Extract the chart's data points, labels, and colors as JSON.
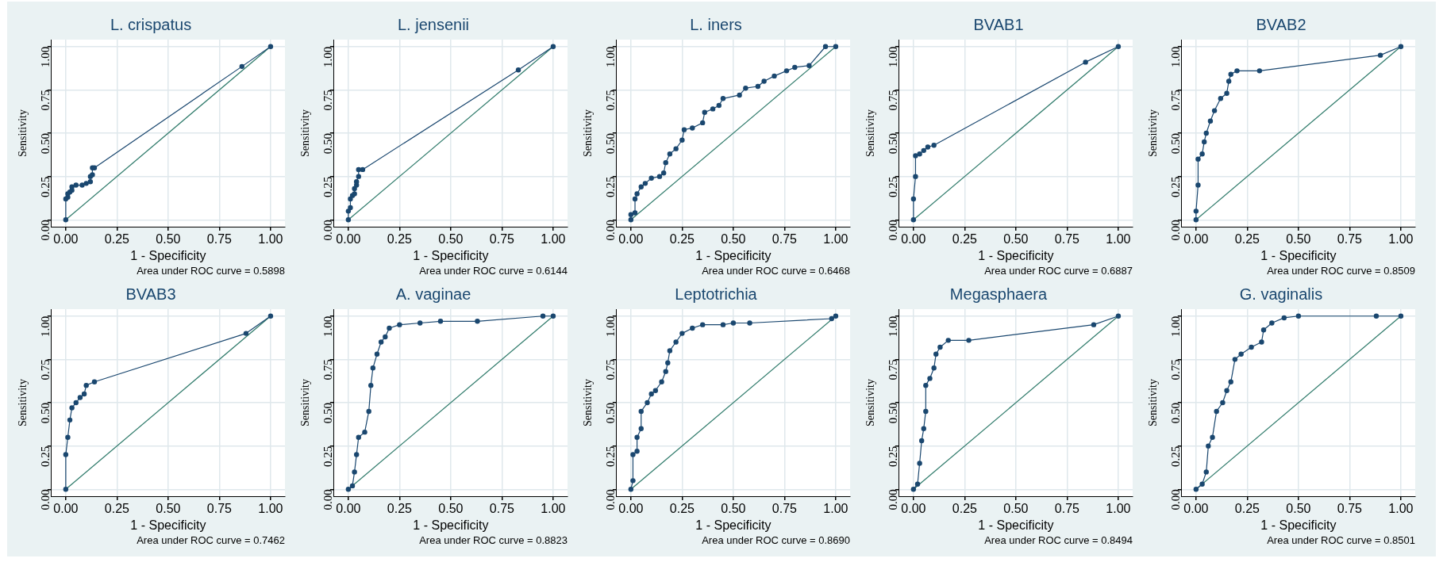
{
  "chart_data": [
    {
      "type": "line",
      "title": "L. crispatus",
      "xlabel": "1 - Specificity",
      "ylabel": "Sensitivity",
      "annotations": [
        "Area under ROC curve = 0.5898"
      ],
      "xlim": [
        -0.07,
        1.07
      ],
      "ylim": [
        -0.04,
        1.04
      ],
      "xticks": [
        {
          "value": 0,
          "label": "0.00"
        },
        {
          "value": 0.25,
          "label": "0.25"
        },
        {
          "value": 0.5,
          "label": "0.50"
        },
        {
          "value": 0.75,
          "label": "0.75"
        },
        {
          "value": 1,
          "label": "1.00"
        }
      ],
      "yticks": [
        {
          "value": 0,
          "label": "0.00"
        },
        {
          "value": 0.25,
          "label": "0.25"
        },
        {
          "value": 0.5,
          "label": "0.50"
        },
        {
          "value": 0.75,
          "label": "0.75"
        },
        {
          "value": 1,
          "label": "1.00"
        }
      ],
      "grid": true,
      "legend": false,
      "marker": "circle",
      "series": [
        {
          "color": "#1a476f",
          "x": [
            0,
            0,
            0.01,
            0.01,
            0.02,
            0.03,
            0.03,
            0.05,
            0.08,
            0.1,
            0.12,
            0.12,
            0.13,
            0.13,
            0.14,
            0.86,
            1
          ],
          "values": [
            0,
            0.12,
            0.13,
            0.15,
            0.16,
            0.17,
            0.19,
            0.2,
            0.2,
            0.21,
            0.22,
            0.25,
            0.26,
            0.3,
            0.3,
            0.885,
            1
          ]
        },
        {
          "color": "#2e7a6a",
          "marker": "none",
          "x": [
            0,
            1
          ],
          "values": [
            0,
            1
          ]
        }
      ]
    },
    {
      "type": "line",
      "title": "L. jensenii",
      "xlabel": "1 - Specificity",
      "ylabel": "Sensitivity",
      "annotations": [
        "Area under ROC curve = 0.6144"
      ],
      "xlim": [
        -0.07,
        1.07
      ],
      "ylim": [
        -0.04,
        1.04
      ],
      "xticks": [
        {
          "value": 0,
          "label": "0.00"
        },
        {
          "value": 0.25,
          "label": "0.25"
        },
        {
          "value": 0.5,
          "label": "0.50"
        },
        {
          "value": 0.75,
          "label": "0.75"
        },
        {
          "value": 1,
          "label": "1.00"
        }
      ],
      "yticks": [
        {
          "value": 0,
          "label": "0.00"
        },
        {
          "value": 0.25,
          "label": "0.25"
        },
        {
          "value": 0.5,
          "label": "0.50"
        },
        {
          "value": 0.75,
          "label": "0.75"
        },
        {
          "value": 1,
          "label": "1.00"
        }
      ],
      "grid": true,
      "legend": false,
      "marker": "circle",
      "series": [
        {
          "color": "#1a476f",
          "x": [
            0,
            0,
            0.01,
            0.01,
            0.02,
            0.03,
            0.03,
            0.04,
            0.04,
            0.05,
            0.05,
            0.07,
            0.83,
            1
          ],
          "values": [
            0,
            0.05,
            0.07,
            0.12,
            0.14,
            0.15,
            0.18,
            0.2,
            0.22,
            0.25,
            0.29,
            0.29,
            0.865,
            1
          ]
        },
        {
          "color": "#2e7a6a",
          "marker": "none",
          "x": [
            0,
            1
          ],
          "values": [
            0,
            1
          ]
        }
      ]
    },
    {
      "type": "line",
      "title": "L. iners",
      "xlabel": "1 - Specificity",
      "ylabel": "Sensitivity",
      "annotations": [
        "Area under ROC curve = 0.6468"
      ],
      "xlim": [
        -0.07,
        1.07
      ],
      "ylim": [
        -0.04,
        1.04
      ],
      "xticks": [
        {
          "value": 0,
          "label": "0.00"
        },
        {
          "value": 0.25,
          "label": "0.25"
        },
        {
          "value": 0.5,
          "label": "0.50"
        },
        {
          "value": 0.75,
          "label": "0.75"
        },
        {
          "value": 1,
          "label": "1.00"
        }
      ],
      "yticks": [
        {
          "value": 0,
          "label": "0.00"
        },
        {
          "value": 0.25,
          "label": "0.25"
        },
        {
          "value": 0.5,
          "label": "0.50"
        },
        {
          "value": 0.75,
          "label": "0.75"
        },
        {
          "value": 1,
          "label": "1.00"
        }
      ],
      "grid": true,
      "legend": false,
      "marker": "circle",
      "series": [
        {
          "color": "#1a476f",
          "x": [
            0,
            0,
            0.02,
            0.02,
            0.03,
            0.05,
            0.07,
            0.1,
            0.14,
            0.16,
            0.17,
            0.19,
            0.22,
            0.25,
            0.26,
            0.3,
            0.35,
            0.36,
            0.4,
            0.43,
            0.45,
            0.53,
            0.56,
            0.62,
            0.65,
            0.7,
            0.76,
            0.8,
            0.87,
            0.95,
            1
          ],
          "values": [
            0,
            0.03,
            0.04,
            0.12,
            0.15,
            0.19,
            0.21,
            0.24,
            0.25,
            0.27,
            0.33,
            0.38,
            0.41,
            0.46,
            0.52,
            0.53,
            0.56,
            0.62,
            0.64,
            0.66,
            0.7,
            0.72,
            0.76,
            0.77,
            0.8,
            0.83,
            0.86,
            0.88,
            0.89,
            1,
            1
          ]
        },
        {
          "color": "#2e7a6a",
          "marker": "none",
          "x": [
            0,
            1
          ],
          "values": [
            0,
            1
          ]
        }
      ]
    },
    {
      "type": "line",
      "title": "BVAB1",
      "xlabel": "1 - Specificity",
      "ylabel": "Sensitivity",
      "annotations": [
        "Area under ROC curve = 0.6887"
      ],
      "xlim": [
        -0.07,
        1.07
      ],
      "ylim": [
        -0.04,
        1.04
      ],
      "xticks": [
        {
          "value": 0,
          "label": "0.00"
        },
        {
          "value": 0.25,
          "label": "0.25"
        },
        {
          "value": 0.5,
          "label": "0.50"
        },
        {
          "value": 0.75,
          "label": "0.75"
        },
        {
          "value": 1,
          "label": "1.00"
        }
      ],
      "yticks": [
        {
          "value": 0,
          "label": "0.00"
        },
        {
          "value": 0.25,
          "label": "0.25"
        },
        {
          "value": 0.5,
          "label": "0.50"
        },
        {
          "value": 0.75,
          "label": "0.75"
        },
        {
          "value": 1,
          "label": "1.00"
        }
      ],
      "grid": true,
      "legend": false,
      "marker": "circle",
      "series": [
        {
          "color": "#1a476f",
          "x": [
            0,
            0,
            0.01,
            0.01,
            0.03,
            0.05,
            0.07,
            0.1,
            0.84,
            1
          ],
          "values": [
            0,
            0.12,
            0.25,
            0.37,
            0.38,
            0.4,
            0.42,
            0.43,
            0.91,
            1
          ]
        },
        {
          "color": "#2e7a6a",
          "marker": "none",
          "x": [
            0,
            1
          ],
          "values": [
            0,
            1
          ]
        }
      ]
    },
    {
      "type": "line",
      "title": "BVAB2",
      "xlabel": "1 - Specificity",
      "ylabel": "Sensitivity",
      "annotations": [
        "Area under ROC curve = 0.8509"
      ],
      "xlim": [
        -0.07,
        1.07
      ],
      "ylim": [
        -0.04,
        1.04
      ],
      "xticks": [
        {
          "value": 0,
          "label": "0.00"
        },
        {
          "value": 0.25,
          "label": "0.25"
        },
        {
          "value": 0.5,
          "label": "0.50"
        },
        {
          "value": 0.75,
          "label": "0.75"
        },
        {
          "value": 1,
          "label": "1.00"
        }
      ],
      "yticks": [
        {
          "value": 0,
          "label": "0.00"
        },
        {
          "value": 0.25,
          "label": "0.25"
        },
        {
          "value": 0.5,
          "label": "0.50"
        },
        {
          "value": 0.75,
          "label": "0.75"
        },
        {
          "value": 1,
          "label": "1.00"
        }
      ],
      "grid": true,
      "legend": false,
      "marker": "circle",
      "series": [
        {
          "color": "#1a476f",
          "x": [
            0,
            0,
            0.01,
            0.01,
            0.03,
            0.04,
            0.05,
            0.07,
            0.09,
            0.12,
            0.15,
            0.16,
            0.17,
            0.2,
            0.31,
            0.9,
            1
          ],
          "values": [
            0,
            0.05,
            0.2,
            0.35,
            0.38,
            0.45,
            0.5,
            0.57,
            0.63,
            0.7,
            0.73,
            0.8,
            0.84,
            0.86,
            0.86,
            0.95,
            1
          ]
        },
        {
          "color": "#2e7a6a",
          "marker": "none",
          "x": [
            0,
            1
          ],
          "values": [
            0,
            1
          ]
        }
      ]
    },
    {
      "type": "line",
      "title": "BVAB3",
      "xlabel": "1 - Specificity",
      "ylabel": "Sensitivity",
      "annotations": [
        "Area under ROC curve = 0.7462"
      ],
      "xlim": [
        -0.07,
        1.07
      ],
      "ylim": [
        -0.04,
        1.04
      ],
      "xticks": [
        {
          "value": 0,
          "label": "0.00"
        },
        {
          "value": 0.25,
          "label": "0.25"
        },
        {
          "value": 0.5,
          "label": "0.50"
        },
        {
          "value": 0.75,
          "label": "0.75"
        },
        {
          "value": 1,
          "label": "1.00"
        }
      ],
      "yticks": [
        {
          "value": 0,
          "label": "0.00"
        },
        {
          "value": 0.25,
          "label": "0.25"
        },
        {
          "value": 0.5,
          "label": "0.50"
        },
        {
          "value": 0.75,
          "label": "0.75"
        },
        {
          "value": 1,
          "label": "1.00"
        }
      ],
      "grid": true,
      "legend": false,
      "marker": "circle",
      "series": [
        {
          "color": "#1a476f",
          "x": [
            0,
            0,
            0.01,
            0.02,
            0.03,
            0.05,
            0.07,
            0.09,
            0.1,
            0.14,
            0.88,
            1
          ],
          "values": [
            0,
            0.2,
            0.3,
            0.4,
            0.47,
            0.5,
            0.53,
            0.55,
            0.6,
            0.62,
            0.9,
            1
          ]
        },
        {
          "color": "#2e7a6a",
          "marker": "none",
          "x": [
            0,
            1
          ],
          "values": [
            0,
            1
          ]
        }
      ]
    },
    {
      "type": "line",
      "title": "A. vaginae",
      "xlabel": "1 - Specificity",
      "ylabel": "Sensitivity",
      "annotations": [
        "Area under ROC curve = 0.8823"
      ],
      "xlim": [
        -0.07,
        1.07
      ],
      "ylim": [
        -0.04,
        1.04
      ],
      "xticks": [
        {
          "value": 0,
          "label": "0.00"
        },
        {
          "value": 0.25,
          "label": "0.25"
        },
        {
          "value": 0.5,
          "label": "0.50"
        },
        {
          "value": 0.75,
          "label": "0.75"
        },
        {
          "value": 1,
          "label": "1.00"
        }
      ],
      "yticks": [
        {
          "value": 0,
          "label": "0.00"
        },
        {
          "value": 0.25,
          "label": "0.25"
        },
        {
          "value": 0.5,
          "label": "0.50"
        },
        {
          "value": 0.75,
          "label": "0.75"
        },
        {
          "value": 1,
          "label": "1.00"
        }
      ],
      "grid": true,
      "legend": false,
      "marker": "circle",
      "series": [
        {
          "color": "#1a476f",
          "x": [
            0,
            0.02,
            0.03,
            0.04,
            0.05,
            0.08,
            0.1,
            0.11,
            0.12,
            0.14,
            0.16,
            0.18,
            0.2,
            0.25,
            0.35,
            0.45,
            0.63,
            0.95,
            1
          ],
          "values": [
            0,
            0.02,
            0.1,
            0.2,
            0.3,
            0.33,
            0.45,
            0.6,
            0.7,
            0.78,
            0.85,
            0.88,
            0.93,
            0.95,
            0.96,
            0.97,
            0.97,
            1,
            1
          ]
        },
        {
          "color": "#2e7a6a",
          "marker": "none",
          "x": [
            0,
            1
          ],
          "values": [
            0,
            1
          ]
        }
      ]
    },
    {
      "type": "line",
      "title": "Leptotrichia",
      "xlabel": "1 - Specificity",
      "ylabel": "Sensitivity",
      "annotations": [
        "Area under ROC curve = 0.8690"
      ],
      "xlim": [
        -0.07,
        1.07
      ],
      "ylim": [
        -0.04,
        1.04
      ],
      "xticks": [
        {
          "value": 0,
          "label": "0.00"
        },
        {
          "value": 0.25,
          "label": "0.25"
        },
        {
          "value": 0.5,
          "label": "0.50"
        },
        {
          "value": 0.75,
          "label": "0.75"
        },
        {
          "value": 1,
          "label": "1.00"
        }
      ],
      "yticks": [
        {
          "value": 0,
          "label": "0.00"
        },
        {
          "value": 0.25,
          "label": "0.25"
        },
        {
          "value": 0.5,
          "label": "0.50"
        },
        {
          "value": 0.75,
          "label": "0.75"
        },
        {
          "value": 1,
          "label": "1.00"
        }
      ],
      "grid": true,
      "legend": false,
      "marker": "circle",
      "series": [
        {
          "color": "#1a476f",
          "x": [
            0,
            0.01,
            0.01,
            0.03,
            0.03,
            0.05,
            0.05,
            0.08,
            0.1,
            0.12,
            0.15,
            0.17,
            0.18,
            0.19,
            0.22,
            0.25,
            0.3,
            0.35,
            0.45,
            0.5,
            0.58,
            0.98,
            1
          ],
          "values": [
            0,
            0.05,
            0.2,
            0.22,
            0.3,
            0.35,
            0.45,
            0.5,
            0.55,
            0.57,
            0.62,
            0.68,
            0.73,
            0.8,
            0.85,
            0.9,
            0.93,
            0.95,
            0.95,
            0.96,
            0.96,
            0.985,
            1
          ]
        },
        {
          "color": "#2e7a6a",
          "marker": "none",
          "x": [
            0,
            1
          ],
          "values": [
            0,
            1
          ]
        }
      ]
    },
    {
      "type": "line",
      "title": "Megasphaera",
      "xlabel": "1 - Specificity",
      "ylabel": "Sensitivity",
      "annotations": [
        "Area under ROC curve = 0.8494"
      ],
      "xlim": [
        -0.07,
        1.07
      ],
      "ylim": [
        -0.04,
        1.04
      ],
      "xticks": [
        {
          "value": 0,
          "label": "0.00"
        },
        {
          "value": 0.25,
          "label": "0.25"
        },
        {
          "value": 0.5,
          "label": "0.50"
        },
        {
          "value": 0.75,
          "label": "0.75"
        },
        {
          "value": 1,
          "label": "1.00"
        }
      ],
      "yticks": [
        {
          "value": 0,
          "label": "0.00"
        },
        {
          "value": 0.25,
          "label": "0.25"
        },
        {
          "value": 0.5,
          "label": "0.50"
        },
        {
          "value": 0.75,
          "label": "0.75"
        },
        {
          "value": 1,
          "label": "1.00"
        }
      ],
      "grid": true,
      "legend": false,
      "marker": "circle",
      "series": [
        {
          "color": "#1a476f",
          "x": [
            0,
            0.02,
            0.03,
            0.04,
            0.05,
            0.06,
            0.06,
            0.08,
            0.1,
            0.11,
            0.13,
            0.17,
            0.27,
            0.88,
            1
          ],
          "values": [
            0,
            0.03,
            0.15,
            0.28,
            0.35,
            0.45,
            0.6,
            0.64,
            0.7,
            0.78,
            0.82,
            0.86,
            0.86,
            0.95,
            1
          ]
        },
        {
          "color": "#2e7a6a",
          "marker": "none",
          "x": [
            0,
            1
          ],
          "values": [
            0,
            1
          ]
        }
      ]
    },
    {
      "type": "line",
      "title": "G. vaginalis",
      "xlabel": "1 - Specificity",
      "ylabel": "Sensitivity",
      "annotations": [
        "Area under ROC curve = 0.8501"
      ],
      "xlim": [
        -0.07,
        1.07
      ],
      "ylim": [
        -0.04,
        1.04
      ],
      "xticks": [
        {
          "value": 0,
          "label": "0.00"
        },
        {
          "value": 0.25,
          "label": "0.25"
        },
        {
          "value": 0.5,
          "label": "0.50"
        },
        {
          "value": 0.75,
          "label": "0.75"
        },
        {
          "value": 1,
          "label": "1.00"
        }
      ],
      "yticks": [
        {
          "value": 0,
          "label": "0.00"
        },
        {
          "value": 0.25,
          "label": "0.25"
        },
        {
          "value": 0.5,
          "label": "0.50"
        },
        {
          "value": 0.75,
          "label": "0.75"
        },
        {
          "value": 1,
          "label": "1.00"
        }
      ],
      "grid": true,
      "legend": false,
      "marker": "circle",
      "series": [
        {
          "color": "#1a476f",
          "x": [
            0,
            0.03,
            0.05,
            0.06,
            0.08,
            0.1,
            0.13,
            0.15,
            0.17,
            0.19,
            0.22,
            0.27,
            0.32,
            0.33,
            0.37,
            0.43,
            0.5,
            0.88,
            1
          ],
          "values": [
            0,
            0.03,
            0.1,
            0.25,
            0.3,
            0.45,
            0.5,
            0.57,
            0.62,
            0.75,
            0.78,
            0.82,
            0.85,
            0.92,
            0.96,
            0.99,
            1,
            1,
            1
          ]
        },
        {
          "color": "#2e7a6a",
          "marker": "none",
          "x": [
            0,
            1
          ],
          "values": [
            0,
            1
          ]
        }
      ]
    }
  ]
}
